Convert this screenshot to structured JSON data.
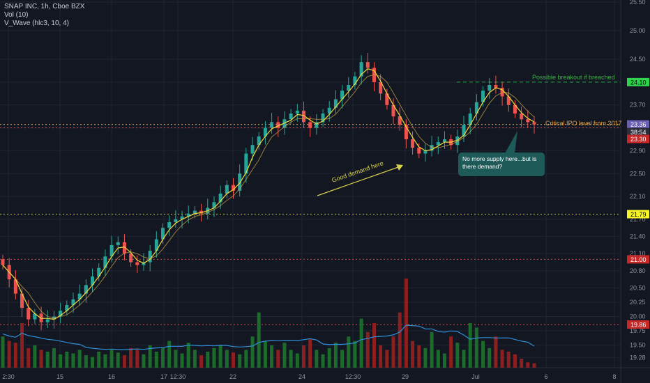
{
  "colors": {
    "background": "#131722",
    "up": "#26a69a",
    "down": "#ef5350",
    "vol_up": "#1b6b2a",
    "vol_down": "#8c1f1f",
    "ma_fast": "#f5d73b",
    "ma_slow": "#c8a24a",
    "vol_ma": "#2f8fd8"
  },
  "legend": {
    "symbol": "SNAP INC, 1h, Cboe BZX",
    "vol": "Vol (10)",
    "vwave": "V_Wave (hlc3, 10, 4)"
  },
  "annotations": {
    "breakout": "Possible breakout if breached",
    "ipo": "Critical IPO level from 2017",
    "demand": "Good demand here",
    "callout": "No more supply here...but is there demand?"
  },
  "price_tags": [
    {
      "label": "24.10",
      "kind": "green"
    },
    {
      "label": "23.36",
      "kind": "purple"
    },
    {
      "label": "38:54",
      "kind": "dark"
    },
    {
      "label": "23.30",
      "kind": "red"
    },
    {
      "label": "21.79",
      "kind": "yellow"
    },
    {
      "label": "21.00",
      "kind": "red"
    },
    {
      "label": "19.86",
      "kind": "red"
    }
  ],
  "chart_data": {
    "type": "candlestick",
    "y_ticks": [
      "25.50",
      "25.00",
      "24.50",
      "24.10",
      "23.70",
      "23.30",
      "22.90",
      "22.50",
      "22.10",
      "21.70",
      "21.40",
      "21.10",
      "20.80",
      "20.50",
      "20.25",
      "20.00",
      "19.75",
      "19.50",
      "19.28"
    ],
    "x_ticks": [
      "2:30",
      "15",
      "16",
      "17",
      "12:30",
      "22",
      "24",
      "12:30",
      "29",
      "Jul",
      "6",
      "8"
    ],
    "horizontal_levels": [
      {
        "value": 24.1,
        "style": "dashed",
        "color": "#26a642"
      },
      {
        "value": 23.36,
        "style": "dotted",
        "color": "#c9b26b"
      },
      {
        "value": 23.3,
        "style": "dotted",
        "color": "#d84a4a"
      },
      {
        "value": 21.79,
        "style": "dotted",
        "color": "#c9c93a"
      },
      {
        "value": 21.0,
        "style": "dotted",
        "color": "#d84a4a"
      },
      {
        "value": 19.86,
        "style": "dotted",
        "color": "#d84a4a"
      }
    ],
    "close_path": [
      20.9,
      20.65,
      20.4,
      20.15,
      19.95,
      20.05,
      19.9,
      19.95,
      20.0,
      20.1,
      20.2,
      20.3,
      20.4,
      20.55,
      20.7,
      20.85,
      21.05,
      21.25,
      21.3,
      21.1,
      20.95,
      20.9,
      20.95,
      21.15,
      21.35,
      21.55,
      21.65,
      21.7,
      21.75,
      21.8,
      21.85,
      21.8,
      21.9,
      22.0,
      22.15,
      22.3,
      22.2,
      22.5,
      22.85,
      23.0,
      23.15,
      23.3,
      23.4,
      23.3,
      23.45,
      23.55,
      23.6,
      23.4,
      23.3,
      23.4,
      23.55,
      23.65,
      23.8,
      23.95,
      24.05,
      24.2,
      24.45,
      24.35,
      24.1,
      23.9,
      23.7,
      23.5,
      23.35,
      23.1,
      22.95,
      22.85,
      22.9,
      23.0,
      23.05,
      23.1,
      23.0,
      23.15,
      23.35,
      23.55,
      23.75,
      23.95,
      24.05,
      24.0,
      23.85,
      23.7,
      23.55,
      23.45,
      23.4,
      23.36
    ],
    "volume_relative": [
      0.35,
      0.3,
      0.28,
      0.5,
      0.22,
      0.25,
      0.2,
      0.18,
      0.22,
      0.15,
      0.18,
      0.16,
      0.2,
      0.14,
      0.12,
      0.18,
      0.15,
      0.2,
      0.17,
      0.14,
      0.22,
      0.2,
      0.15,
      0.25,
      0.18,
      0.22,
      0.3,
      0.2,
      0.16,
      0.28,
      0.2,
      0.14,
      0.18,
      0.22,
      0.25,
      0.2,
      0.17,
      0.15,
      0.2,
      0.35,
      0.62,
      0.3,
      0.25,
      0.2,
      0.28,
      0.2,
      0.16,
      0.25,
      0.32,
      0.2,
      0.15,
      0.22,
      0.28,
      0.2,
      0.35,
      0.3,
      0.55,
      0.4,
      0.5,
      0.25,
      0.2,
      0.35,
      0.62,
      1.0,
      0.3,
      0.25,
      0.22,
      0.4,
      0.2,
      0.16,
      0.35,
      0.28,
      0.2,
      0.5,
      0.45,
      0.3,
      0.22,
      0.35,
      0.2,
      0.18,
      0.15,
      0.1,
      0.06,
      0.05
    ]
  }
}
